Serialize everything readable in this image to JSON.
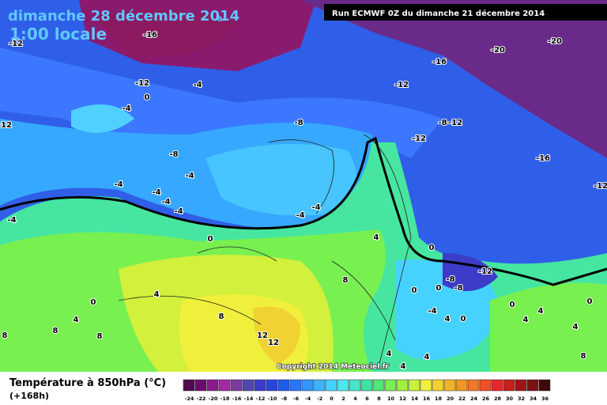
{
  "header": {
    "title": "dimanche 28 décembre 2014",
    "title_mark": "8",
    "subtitle": "1:00 locale",
    "run": "Run ECMWF 0Z du dimanche 21 décembre 2014"
  },
  "copyright": "Copyright 2014 Meteociel.fr",
  "legend": {
    "title": "Température à 850hPa (°C)",
    "lead": "(+168h)",
    "ticks": [
      -24,
      -22,
      -20,
      -18,
      -16,
      -14,
      -12,
      -10,
      -8,
      -6,
      -4,
      -2,
      0,
      2,
      4,
      6,
      8,
      10,
      12,
      14,
      16,
      18,
      20,
      22,
      24,
      26,
      28,
      30,
      32,
      34,
      36
    ],
    "colors": [
      "#4d0a4d",
      "#6a0d6a",
      "#8a1a8a",
      "#a32aa3",
      "#7a3aa0",
      "#5046b4",
      "#3c3cc8",
      "#2846dc",
      "#1e5af0",
      "#2878ff",
      "#3296ff",
      "#3cb4ff",
      "#46d2ff",
      "#50e6f0",
      "#46e6c8",
      "#3ce6a0",
      "#50e678",
      "#78f050",
      "#a0f03c",
      "#c8f03c",
      "#f0f03c",
      "#f0d232",
      "#f0b428",
      "#f09628",
      "#f07828",
      "#f05028",
      "#e62828",
      "#c81e1e",
      "#a01414",
      "#781414",
      "#3c0a0a"
    ]
  },
  "contour_labels": [
    -16,
    -12,
    -20,
    -20,
    -16,
    -12,
    -4,
    0,
    -4,
    -12,
    -12,
    -8,
    -8,
    -12,
    -12,
    -8,
    -16,
    -4,
    -4,
    -12,
    -4,
    -4,
    -4,
    -4,
    -4,
    -4,
    0,
    4,
    0,
    8,
    -8,
    -12,
    0,
    0,
    -8,
    4,
    0,
    8,
    4,
    -4,
    4,
    0,
    0,
    0,
    4,
    4,
    4,
    8,
    8,
    12,
    12,
    8,
    8,
    4,
    4,
    4
  ]
}
